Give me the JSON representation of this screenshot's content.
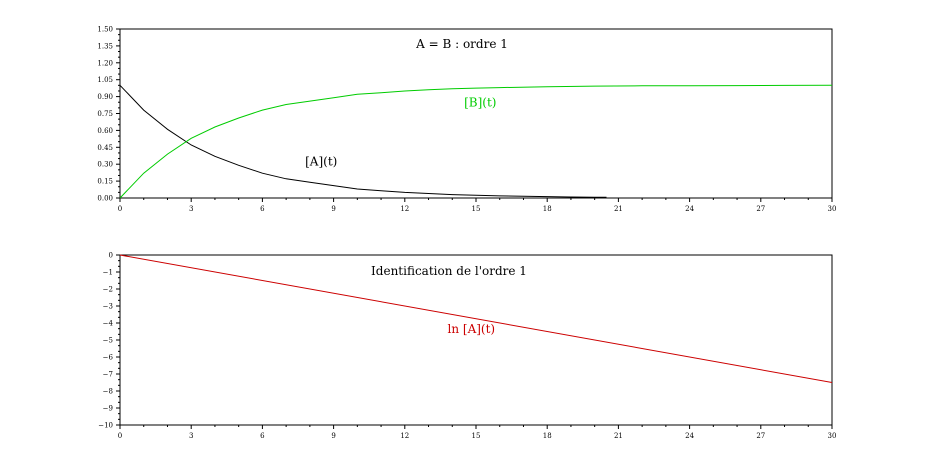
{
  "chart_data": [
    {
      "type": "line",
      "annotation": "A = B : ordre 1",
      "xlim": [
        0,
        30
      ],
      "ylim": [
        0,
        1.5
      ],
      "xticks": [
        "0",
        "3",
        "6",
        "9",
        "12",
        "15",
        "18",
        "21",
        "24",
        "27",
        "30"
      ],
      "yticks": [
        "0.00",
        "0.15",
        "0.30",
        "0.45",
        "0.60",
        "0.75",
        "0.90",
        "1.05",
        "1.20",
        "1.35",
        "1.50"
      ],
      "grid": false,
      "x": [
        0,
        1,
        2,
        3,
        4,
        5,
        6,
        7,
        8,
        9,
        10,
        11,
        12,
        13,
        14,
        15,
        16,
        17,
        18,
        19,
        20,
        20.5,
        21,
        22,
        23,
        24,
        25,
        26,
        27,
        28,
        29,
        30
      ],
      "series": [
        {
          "name": "[A](t)",
          "color": "#000000",
          "x": [
            0,
            1,
            2,
            3,
            4,
            5,
            6,
            7,
            8,
            9,
            10,
            11,
            12,
            13,
            14,
            15,
            16,
            17,
            18,
            19,
            20,
            20.5
          ],
          "values": [
            1.0,
            0.78,
            0.61,
            0.47,
            0.37,
            0.29,
            0.22,
            0.17,
            0.14,
            0.11,
            0.08,
            0.065,
            0.05,
            0.04,
            0.03,
            0.025,
            0.019,
            0.015,
            0.012,
            0.009,
            0.007,
            0.006
          ]
        },
        {
          "name": "[B](t)",
          "color": "#00cc00",
          "x": [
            0,
            1,
            2,
            3,
            4,
            5,
            6,
            7,
            8,
            9,
            10,
            11,
            12,
            13,
            14,
            15,
            16,
            18,
            20,
            22,
            24,
            26,
            28,
            30
          ],
          "values": [
            0.0,
            0.22,
            0.39,
            0.53,
            0.63,
            0.71,
            0.78,
            0.83,
            0.86,
            0.89,
            0.92,
            0.935,
            0.95,
            0.96,
            0.97,
            0.975,
            0.98,
            0.988,
            0.993,
            0.996,
            0.997,
            0.998,
            0.999,
            1.0
          ]
        }
      ],
      "labels": [
        {
          "text": "[B](t)",
          "x": 14.5,
          "y": 0.81,
          "color": "#00cc00"
        },
        {
          "text": "[A](t)",
          "x": 7.8,
          "y": 0.29,
          "color": "#000000"
        }
      ]
    },
    {
      "type": "line",
      "annotation": "Identification de l'ordre 1",
      "xlim": [
        0,
        30
      ],
      "ylim": [
        -10,
        0
      ],
      "xticks": [
        "0",
        "3",
        "6",
        "9",
        "12",
        "15",
        "18",
        "21",
        "24",
        "27",
        "30"
      ],
      "yticks": [
        "−10",
        "−9",
        "−8",
        "−7",
        "−6",
        "−5",
        "−4",
        "−3",
        "−2",
        "−1",
        "0"
      ],
      "grid": false,
      "series": [
        {
          "name": "ln [A](t)",
          "color": "#cc0000",
          "x": [
            0,
            30
          ],
          "values": [
            0,
            -7.5
          ]
        }
      ],
      "labels": [
        {
          "text": "ln [A](t)",
          "x": 13.8,
          "y": -4.6,
          "color": "#cc0000"
        }
      ]
    }
  ]
}
